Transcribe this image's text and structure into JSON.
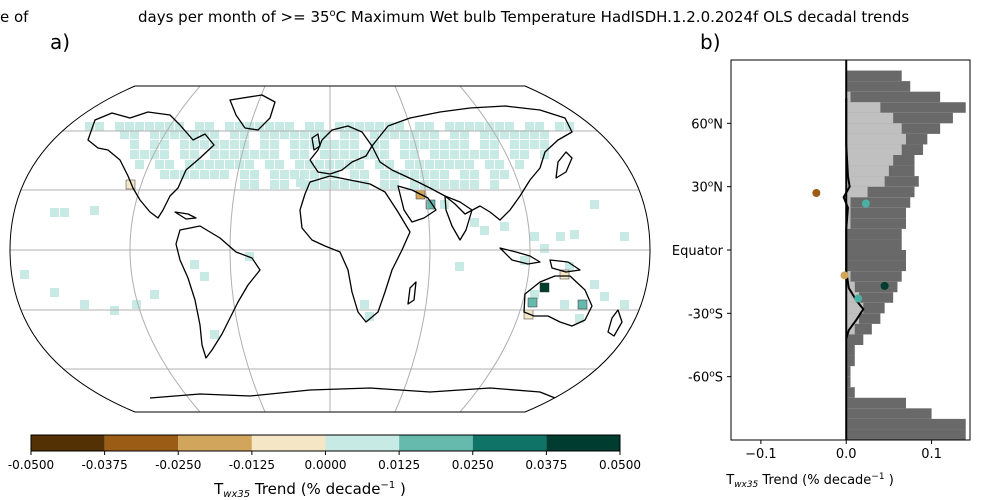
{
  "title_prefix": "e of",
  "title": "days per month of >= 35",
  "title_sup": "o",
  "title_rest": "C Maximum Wet bulb Temperature HadISDH.1.2.0.2024f OLS decadal trends",
  "panel_a_label": "a)",
  "panel_b_label": "b)",
  "colorbar": {
    "ticks": [
      "-0.0500",
      "-0.0375",
      "-0.0250",
      "-0.0125",
      "0.0000",
      "0.0125",
      "0.0250",
      "0.0375",
      "0.0500"
    ],
    "colors": [
      "#543005",
      "#9b5c16",
      "#d2a55c",
      "#f5e6c5",
      "#c7eae4",
      "#66b9ad",
      "#0f7368",
      "#003c30"
    ],
    "label_pre": "T",
    "label_sub": "wx35",
    "label_post": " Trend (% decade",
    "label_sup": "−1",
    "label_end": " )"
  },
  "colors": {
    "land_outline": "#000000",
    "grid": "#b0b0b0",
    "ocean": "#ffffff",
    "hist_dark": "#696969",
    "hist_light": "#c0c0c0",
    "point_brown": "#9b5c16",
    "point_teal": "#4bb0a3",
    "point_darkgreen": "#003c30"
  },
  "chart_data": {
    "type": "bar",
    "orientation": "horizontal",
    "title": "",
    "xlabel_pre": "T",
    "xlabel_sub": "wx35",
    "xlabel_post": " Trend (% decade",
    "xlabel_sup": "−1",
    "xlabel_end": " )",
    "xlim": [
      -0.135,
      0.145
    ],
    "ylim": [
      -90,
      90
    ],
    "xticks": [
      -0.1,
      0.0,
      0.1
    ],
    "xtick_labels": [
      "−0.1",
      "0.0",
      "0.1"
    ],
    "yticks": [
      {
        "lat": 60,
        "text": "60",
        "sup": "o",
        "suffix": "N"
      },
      {
        "lat": 30,
        "text": "30",
        "sup": "o",
        "suffix": "N"
      },
      {
        "lat": 0,
        "text": "Equator",
        "sup": "",
        "suffix": ""
      },
      {
        "lat": -30,
        "text": "-30",
        "sup": "o",
        "suffix": "S"
      },
      {
        "lat": -60,
        "text": "-60",
        "sup": "o",
        "suffix": "S"
      }
    ],
    "lat_bands": [
      {
        "lat": 82.5,
        "land_fraction": 0.065
      },
      {
        "lat": 77.5,
        "land_fraction": 0.075
      },
      {
        "lat": 72.5,
        "land_fraction": 0.11
      },
      {
        "lat": 67.5,
        "land_fraction": 0.14
      },
      {
        "lat": 62.5,
        "land_fraction": 0.125
      },
      {
        "lat": 57.5,
        "land_fraction": 0.11
      },
      {
        "lat": 52.5,
        "land_fraction": 0.095
      },
      {
        "lat": 47.5,
        "land_fraction": 0.09
      },
      {
        "lat": 42.5,
        "land_fraction": 0.08
      },
      {
        "lat": 37.5,
        "land_fraction": 0.08
      },
      {
        "lat": 32.5,
        "land_fraction": 0.085
      },
      {
        "lat": 27.5,
        "land_fraction": 0.08
      },
      {
        "lat": 22.5,
        "land_fraction": 0.075
      },
      {
        "lat": 17.5,
        "land_fraction": 0.07
      },
      {
        "lat": 12.5,
        "land_fraction": 0.07
      },
      {
        "lat": 7.5,
        "land_fraction": 0.065
      },
      {
        "lat": 2.5,
        "land_fraction": 0.065
      },
      {
        "lat": -2.5,
        "land_fraction": 0.07
      },
      {
        "lat": -7.5,
        "land_fraction": 0.07
      },
      {
        "lat": -12.5,
        "land_fraction": 0.065
      },
      {
        "lat": -17.5,
        "land_fraction": 0.06
      },
      {
        "lat": -22.5,
        "land_fraction": 0.055
      },
      {
        "lat": -27.5,
        "land_fraction": 0.045
      },
      {
        "lat": -32.5,
        "land_fraction": 0.04
      },
      {
        "lat": -37.5,
        "land_fraction": 0.03
      },
      {
        "lat": -42.5,
        "land_fraction": 0.02
      },
      {
        "lat": -47.5,
        "land_fraction": 0.01
      },
      {
        "lat": -52.5,
        "land_fraction": 0.01
      },
      {
        "lat": -57.5,
        "land_fraction": 0.005
      },
      {
        "lat": -62.5,
        "land_fraction": 0.005
      },
      {
        "lat": -67.5,
        "land_fraction": 0.01
      },
      {
        "lat": -72.5,
        "land_fraction": 0.07
      },
      {
        "lat": -77.5,
        "land_fraction": 0.1
      },
      {
        "lat": -82.5,
        "land_fraction": 0.14
      },
      {
        "lat": -87.5,
        "land_fraction": 0.14
      }
    ],
    "coverage_bands": [
      {
        "lat": 72.5,
        "fraction": 0.005
      },
      {
        "lat": 67.5,
        "fraction": 0.04
      },
      {
        "lat": 62.5,
        "fraction": 0.055
      },
      {
        "lat": 57.5,
        "fraction": 0.065
      },
      {
        "lat": 52.5,
        "fraction": 0.07
      },
      {
        "lat": 47.5,
        "fraction": 0.065
      },
      {
        "lat": 42.5,
        "fraction": 0.055
      },
      {
        "lat": 37.5,
        "fraction": 0.05
      },
      {
        "lat": 32.5,
        "fraction": 0.045
      },
      {
        "lat": 27.5,
        "fraction": 0.025
      },
      {
        "lat": 22.5,
        "fraction": 0.005
      },
      {
        "lat": 17.5,
        "fraction": 0.005
      },
      {
        "lat": 12.5,
        "fraction": 0.005
      },
      {
        "lat": -12.5,
        "fraction": 0.005
      },
      {
        "lat": -17.5,
        "fraction": 0.01
      },
      {
        "lat": -22.5,
        "fraction": 0.015
      },
      {
        "lat": -27.5,
        "fraction": 0.02
      },
      {
        "lat": -32.5,
        "fraction": 0.015
      },
      {
        "lat": -37.5,
        "fraction": 0.01
      }
    ],
    "zonal_mean_line": [
      [
        0.0,
        72
      ],
      [
        0.0,
        50
      ],
      [
        0.002,
        35
      ],
      [
        0.004,
        30
      ],
      [
        -0.003,
        25
      ],
      [
        0.002,
        20
      ],
      [
        0.0,
        10
      ],
      [
        0.0,
        -10
      ],
      [
        0.003,
        -18
      ],
      [
        0.012,
        -24
      ],
      [
        0.02,
        -28
      ],
      [
        0.012,
        -33
      ],
      [
        0.003,
        -38
      ],
      [
        0.0,
        -42
      ]
    ],
    "points": [
      {
        "x": -0.035,
        "lat": 27,
        "color": "#9b5c16"
      },
      {
        "x": 0.023,
        "lat": 22,
        "color": "#4bb0a3"
      },
      {
        "x": 0.045,
        "lat": -17,
        "color": "#003c30"
      },
      {
        "x": 0.014,
        "lat": -23,
        "color": "#4bb0a3"
      },
      {
        "x": -0.002,
        "lat": -12,
        "color": "#d2a55c"
      }
    ]
  }
}
